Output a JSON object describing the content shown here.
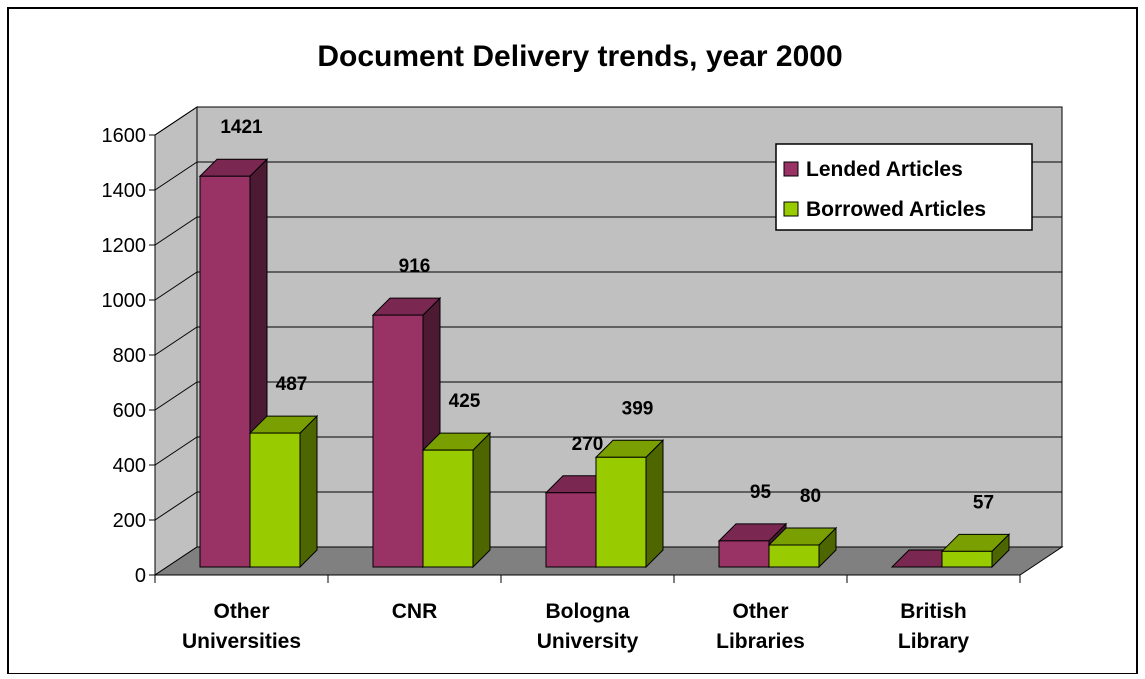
{
  "chart_data": {
    "type": "bar",
    "title": "Document Delivery trends, year 2000",
    "categories": [
      [
        "Other",
        "Universities"
      ],
      [
        "CNR"
      ],
      [
        "Bologna",
        "University"
      ],
      [
        "Other",
        "Libraries"
      ],
      [
        "British",
        "Library"
      ]
    ],
    "series": [
      {
        "name": "Lended Articles",
        "values": [
          1421,
          916,
          270,
          95,
          0
        ],
        "color": "#993366",
        "top_color": "#7a2851",
        "side_color": "#4d1a33"
      },
      {
        "name": "Borrowed Articles",
        "values": [
          487,
          425,
          399,
          80,
          57
        ],
        "color": "#99cc00",
        "top_color": "#7a9f00",
        "side_color": "#4d6600"
      }
    ],
    "data_labels": [
      [
        "1421",
        "916",
        "270",
        "95",
        ""
      ],
      [
        "487",
        "425",
        "399",
        "80",
        "57"
      ]
    ],
    "yticks": [
      "0",
      "200",
      "400",
      "600",
      "800",
      "1000",
      "1200",
      "1400",
      "1600"
    ],
    "ylim": [
      0,
      1600
    ],
    "grid": true,
    "legend_position": "top-right",
    "wall_color": "#c0c0c0",
    "floor_color": "#808080"
  }
}
